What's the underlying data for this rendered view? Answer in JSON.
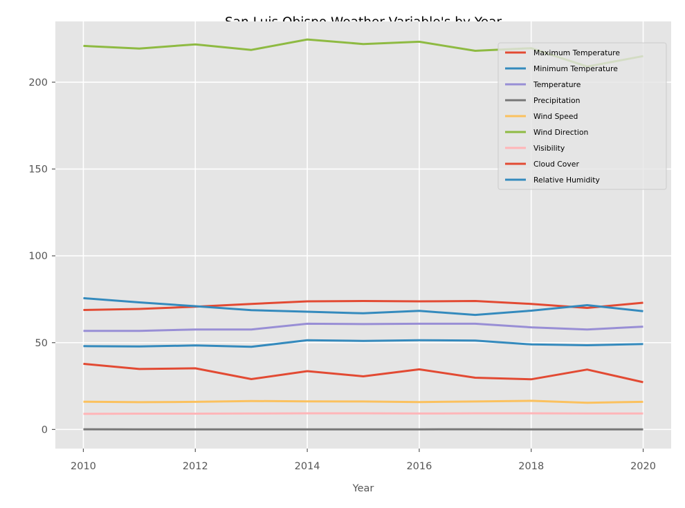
{
  "chart_data": {
    "type": "line",
    "title": "San Luis Obispo Weather Variable's by Year",
    "xlabel": "Year",
    "ylabel": "",
    "xlim": [
      2009.5,
      2020.5
    ],
    "ylim": [
      -11,
      235
    ],
    "x_ticks": [
      2010,
      2012,
      2014,
      2016,
      2018,
      2020
    ],
    "y_ticks": [
      0,
      50,
      100,
      150,
      200
    ],
    "grid": true,
    "legend_position": "top-right",
    "x": [
      2010,
      2011,
      2012,
      2013,
      2014,
      2015,
      2016,
      2017,
      2018,
      2019,
      2020
    ],
    "series": [
      {
        "name": "Maximum Temperature",
        "color": "#E24A33",
        "values": [
          68.8,
          69.4,
          70.7,
          72.3,
          73.8,
          74.0,
          73.8,
          74.0,
          72.3,
          70.0,
          73.0
        ]
      },
      {
        "name": "Minimum Temperature",
        "color": "#348ABD",
        "values": [
          48.0,
          47.8,
          48.4,
          47.6,
          51.4,
          51.0,
          51.4,
          51.2,
          49.0,
          48.5,
          49.2
        ]
      },
      {
        "name": "Temperature",
        "color": "#988ED5",
        "values": [
          56.8,
          56.8,
          57.6,
          57.6,
          60.9,
          60.7,
          60.9,
          60.9,
          58.8,
          57.6,
          59.2
        ]
      },
      {
        "name": "Precipitation",
        "color": "#777777",
        "values": [
          0.1,
          0.08,
          0.07,
          0.03,
          0.06,
          0.05,
          0.07,
          0.09,
          0.05,
          0.06,
          0.03
        ]
      },
      {
        "name": "Wind Speed",
        "color": "#FBC15E",
        "values": [
          16.0,
          15.7,
          15.9,
          16.4,
          16.2,
          16.1,
          15.8,
          16.1,
          16.5,
          15.4,
          15.9
        ]
      },
      {
        "name": "Wind Direction",
        "color": "#8EBA42",
        "values": [
          220.9,
          219.4,
          221.8,
          218.6,
          224.6,
          222.0,
          223.3,
          218.1,
          219.6,
          209.0,
          215.0
        ]
      },
      {
        "name": "Visibility",
        "color": "#FFB5B8",
        "values": [
          9.0,
          9.1,
          9.1,
          9.2,
          9.3,
          9.3,
          9.2,
          9.3,
          9.3,
          9.2,
          9.2
        ]
      },
      {
        "name": "Cloud Cover",
        "color": "#E24A33",
        "values": [
          37.8,
          34.8,
          35.2,
          29.0,
          33.6,
          30.6,
          34.6,
          29.8,
          28.9,
          34.5,
          27.2
        ]
      },
      {
        "name": "Relative Humidity",
        "color": "#348ABD",
        "values": [
          75.6,
          73.2,
          71.0,
          68.7,
          67.8,
          66.9,
          68.3,
          66.0,
          68.4,
          71.6,
          68.1
        ]
      }
    ]
  }
}
